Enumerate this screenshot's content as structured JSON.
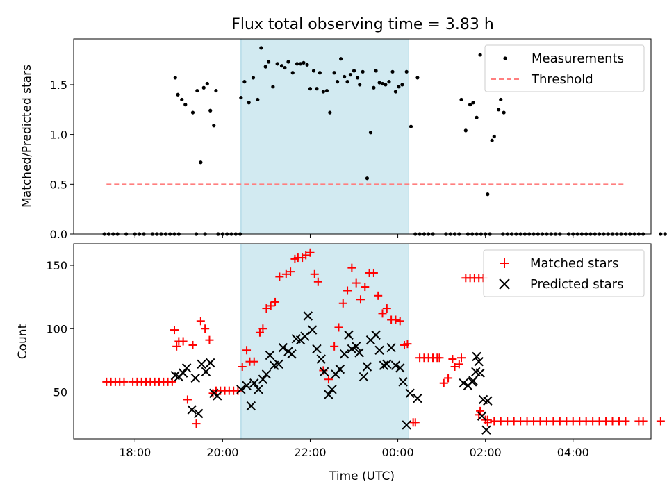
{
  "chart_data": [
    {
      "type": "scatter",
      "title": "Flux total observing time = 3.83 h",
      "xlabel": "",
      "ylabel": "Matched/Predicted stars",
      "xlim": [
        16.6,
        29.78
      ],
      "ylim": [
        0,
        1.96
      ],
      "xticks": [
        18,
        20,
        22,
        24,
        26,
        28
      ],
      "xtick_labels": [
        "18:00",
        "20:00",
        "22:00",
        "00:00",
        "02:00",
        "04:00"
      ],
      "yticks": [
        0.0,
        0.5,
        1.0,
        1.5
      ],
      "ytick_labels": [
        "0.0",
        "0.5",
        "1.0",
        "1.5"
      ],
      "observing_window": {
        "start": 20.42,
        "end": 24.25,
        "color": "#add8e6"
      },
      "legend": {
        "placement": "upper right",
        "entries": [
          "Measurements",
          "Threshold"
        ]
      },
      "series": [
        {
          "name": "Measurements",
          "marker": "dot",
          "color": "#000000",
          "x": [
            17.3,
            17.4,
            17.5,
            17.6,
            17.8,
            18.0,
            18.1,
            18.2,
            18.4,
            18.5,
            18.6,
            18.7,
            18.8,
            18.9,
            19.0,
            19.4,
            19.6,
            19.9,
            20.0,
            20.1,
            20.2,
            20.3,
            20.4,
            24.4,
            24.5,
            24.6,
            24.7,
            24.8,
            25.1,
            25.2,
            25.3,
            25.4,
            25.6,
            25.7,
            25.8,
            25.9,
            26.0,
            26.1,
            26.4,
            26.5,
            26.6,
            26.7,
            26.8,
            26.9,
            27.0,
            27.1,
            27.2,
            27.3,
            27.4,
            27.5,
            27.6,
            27.7,
            27.9,
            28.0,
            28.1,
            28.2,
            28.3,
            28.4,
            28.5,
            28.6,
            28.7,
            28.8,
            28.9,
            29.0,
            29.1,
            29.2,
            29.3,
            29.4,
            29.5,
            29.6,
            30.0,
            30.1,
            18.92,
            18.98,
            19.07,
            19.15,
            19.32,
            19.42,
            19.5,
            19.57,
            19.65,
            19.72,
            19.8,
            19.85,
            20.42,
            20.5,
            20.6,
            20.7,
            20.8,
            20.88,
            20.98,
            21.05,
            21.15,
            21.25,
            21.35,
            21.42,
            21.5,
            21.6,
            21.7,
            21.78,
            21.85,
            21.93,
            22.0,
            22.08,
            22.15,
            22.22,
            22.3,
            22.38,
            22.45,
            22.55,
            22.62,
            22.7,
            22.78,
            22.85,
            22.92,
            23.0,
            23.08,
            23.13,
            23.2,
            23.3,
            23.38,
            23.45,
            23.5,
            23.58,
            23.65,
            23.72,
            23.8,
            23.88,
            23.95,
            24.02,
            24.1,
            24.2,
            24.3,
            24.45,
            25.45,
            25.55,
            25.65,
            25.72,
            25.8,
            25.88,
            26.05,
            26.15,
            26.2,
            26.3,
            26.35,
            26.42
          ],
          "y": [
            0,
            0,
            0,
            0,
            0,
            0,
            0,
            0,
            0,
            0,
            0,
            0,
            0,
            0,
            0,
            0,
            0,
            0,
            0,
            0,
            0,
            0,
            0,
            0,
            0,
            0,
            0,
            0,
            0,
            0,
            0,
            0,
            0,
            0,
            0,
            0,
            0,
            0,
            0,
            0,
            0,
            0,
            0,
            0,
            0,
            0,
            0,
            0,
            0,
            0,
            0,
            0,
            0,
            0,
            0,
            0,
            0,
            0,
            0,
            0,
            0,
            0,
            0,
            0,
            0,
            0,
            0,
            0,
            0,
            0,
            0,
            0,
            1.57,
            1.4,
            1.35,
            1.3,
            1.22,
            1.44,
            0.72,
            1.47,
            1.51,
            1.24,
            1.09,
            1.44,
            1.37,
            1.53,
            1.32,
            1.57,
            1.35,
            1.87,
            1.68,
            1.73,
            1.48,
            1.71,
            1.69,
            1.67,
            1.73,
            1.62,
            1.71,
            1.71,
            1.72,
            1.7,
            1.46,
            1.64,
            1.46,
            1.62,
            1.43,
            1.44,
            1.22,
            1.62,
            1.53,
            1.76,
            1.58,
            1.53,
            1.6,
            1.64,
            1.57,
            1.5,
            1.63,
            0.56,
            1.02,
            1.47,
            1.64,
            1.52,
            1.51,
            1.5,
            1.53,
            1.63,
            1.43,
            1.48,
            1.5,
            1.63,
            1.08,
            1.57,
            1.35,
            1.04,
            1.3,
            1.32,
            1.17,
            1.8,
            0.4,
            0.94,
            0.98,
            1.25,
            1.35,
            1.22
          ]
        },
        {
          "name": "Threshold",
          "marker": "dashed-line",
          "color": "#ff7f7f",
          "x": [
            17.35,
            29.2
          ],
          "y": [
            0.5,
            0.5
          ]
        }
      ]
    },
    {
      "type": "scatter",
      "title": "",
      "xlabel": "Time (UTC)",
      "ylabel": "Count",
      "xlim": [
        16.6,
        29.78
      ],
      "ylim": [
        13,
        167
      ],
      "xticks": [
        18,
        20,
        22,
        24,
        26,
        28
      ],
      "xtick_labels": [
        "18:00",
        "20:00",
        "22:00",
        "00:00",
        "02:00",
        "04:00"
      ],
      "yticks": [
        50,
        100,
        150
      ],
      "ytick_labels": [
        "50",
        "100",
        "150"
      ],
      "observing_window": {
        "start": 20.42,
        "end": 24.25,
        "color": "#add8e6"
      },
      "legend": {
        "placement": "upper right",
        "entries": [
          "Matched stars",
          "Predicted stars"
        ]
      },
      "series": [
        {
          "name": "Matched stars",
          "marker": "plus",
          "color": "#ff0000",
          "x": [
            17.35,
            17.45,
            17.55,
            17.65,
            17.75,
            17.95,
            18.05,
            18.15,
            18.25,
            18.35,
            18.45,
            18.55,
            18.65,
            18.75,
            18.85,
            18.9,
            18.95,
            19.0,
            19.1,
            19.2,
            19.32,
            19.4,
            19.5,
            19.6,
            19.7,
            19.78,
            19.85,
            19.95,
            20.05,
            20.15,
            20.25,
            20.35,
            20.45,
            20.55,
            20.62,
            20.72,
            20.85,
            20.92,
            21.0,
            21.1,
            21.2,
            21.3,
            21.45,
            21.55,
            21.65,
            21.72,
            21.82,
            21.9,
            22.0,
            22.1,
            22.18,
            22.3,
            22.42,
            22.55,
            22.65,
            22.75,
            22.85,
            22.95,
            23.05,
            23.15,
            23.25,
            23.35,
            23.45,
            23.55,
            23.65,
            23.75,
            23.85,
            23.95,
            24.05,
            24.15,
            24.22,
            24.35,
            24.4,
            24.5,
            24.6,
            24.7,
            24.8,
            24.9,
            24.95,
            25.05,
            25.15,
            25.25,
            25.3,
            25.4,
            25.45,
            25.55,
            25.65,
            25.75,
            25.85,
            25.95,
            26.05,
            25.85,
            25.88,
            26.0,
            26.05,
            26.2,
            26.35,
            26.5,
            26.65,
            26.8,
            26.95,
            27.1,
            27.25,
            27.4,
            27.55,
            27.7,
            27.85,
            28.0,
            28.15,
            28.3,
            28.45,
            28.6,
            28.75,
            28.9,
            29.05,
            29.2,
            29.5,
            29.6,
            30.0
          ],
          "y": [
            58,
            58,
            58,
            58,
            58,
            58,
            58,
            58,
            58,
            58,
            58,
            58,
            58,
            58,
            58,
            99,
            86,
            90,
            90,
            44,
            87,
            25,
            106,
            100,
            91,
            49,
            51,
            51,
            51,
            51,
            51,
            51,
            70,
            83,
            74,
            74,
            97,
            100,
            116,
            118,
            121,
            141,
            143,
            145,
            155,
            156,
            156,
            158,
            160,
            143,
            137,
            67,
            60,
            86,
            101,
            120,
            130,
            148,
            136,
            123,
            133,
            144,
            144,
            126,
            112,
            116,
            107,
            107,
            106,
            87,
            88,
            26,
            26,
            77,
            77,
            77,
            77,
            77,
            77,
            57,
            61,
            76,
            70,
            72,
            77,
            140,
            140,
            140,
            140,
            140,
            26,
            32,
            35,
            28,
            28,
            27,
            27,
            27,
            27,
            27,
            27,
            27,
            27,
            27,
            27,
            27,
            27,
            27,
            27,
            27,
            27,
            27,
            27,
            27,
            27,
            27,
            27,
            27,
            27
          ]
        },
        {
          "name": "Predicted stars",
          "marker": "x",
          "color": "#000000",
          "x": [
            18.92,
            19.0,
            19.1,
            19.18,
            19.3,
            19.38,
            19.45,
            19.52,
            19.62,
            19.72,
            19.8,
            19.88,
            20.42,
            20.55,
            20.65,
            20.72,
            20.82,
            20.92,
            21.0,
            21.08,
            21.18,
            21.28,
            21.38,
            21.5,
            21.58,
            21.68,
            21.78,
            21.88,
            21.95,
            22.05,
            22.15,
            22.25,
            22.32,
            22.42,
            22.5,
            22.58,
            22.68,
            22.78,
            22.88,
            22.95,
            23.05,
            23.12,
            23.22,
            23.3,
            23.38,
            23.5,
            23.58,
            23.68,
            23.75,
            23.85,
            23.95,
            24.05,
            24.12,
            24.2,
            24.28,
            24.45,
            25.5,
            25.6,
            25.7,
            25.8,
            25.88,
            25.95,
            26.05,
            25.72,
            25.78,
            25.85,
            25.92,
            26.02
          ],
          "y": [
            63,
            62,
            65,
            69,
            36,
            61,
            33,
            72,
            66,
            73,
            49,
            47,
            52,
            55,
            39,
            57,
            52,
            60,
            64,
            79,
            71,
            72,
            85,
            82,
            80,
            92,
            91,
            94,
            110,
            99,
            84,
            76,
            66,
            48,
            52,
            64,
            68,
            80,
            95,
            84,
            86,
            81,
            62,
            70,
            91,
            95,
            83,
            71,
            72,
            85,
            71,
            69,
            58,
            24,
            49,
            45,
            57,
            55,
            58,
            78,
            65,
            44,
            43,
            59,
            66,
            74,
            31,
            20
          ]
        }
      ]
    }
  ]
}
